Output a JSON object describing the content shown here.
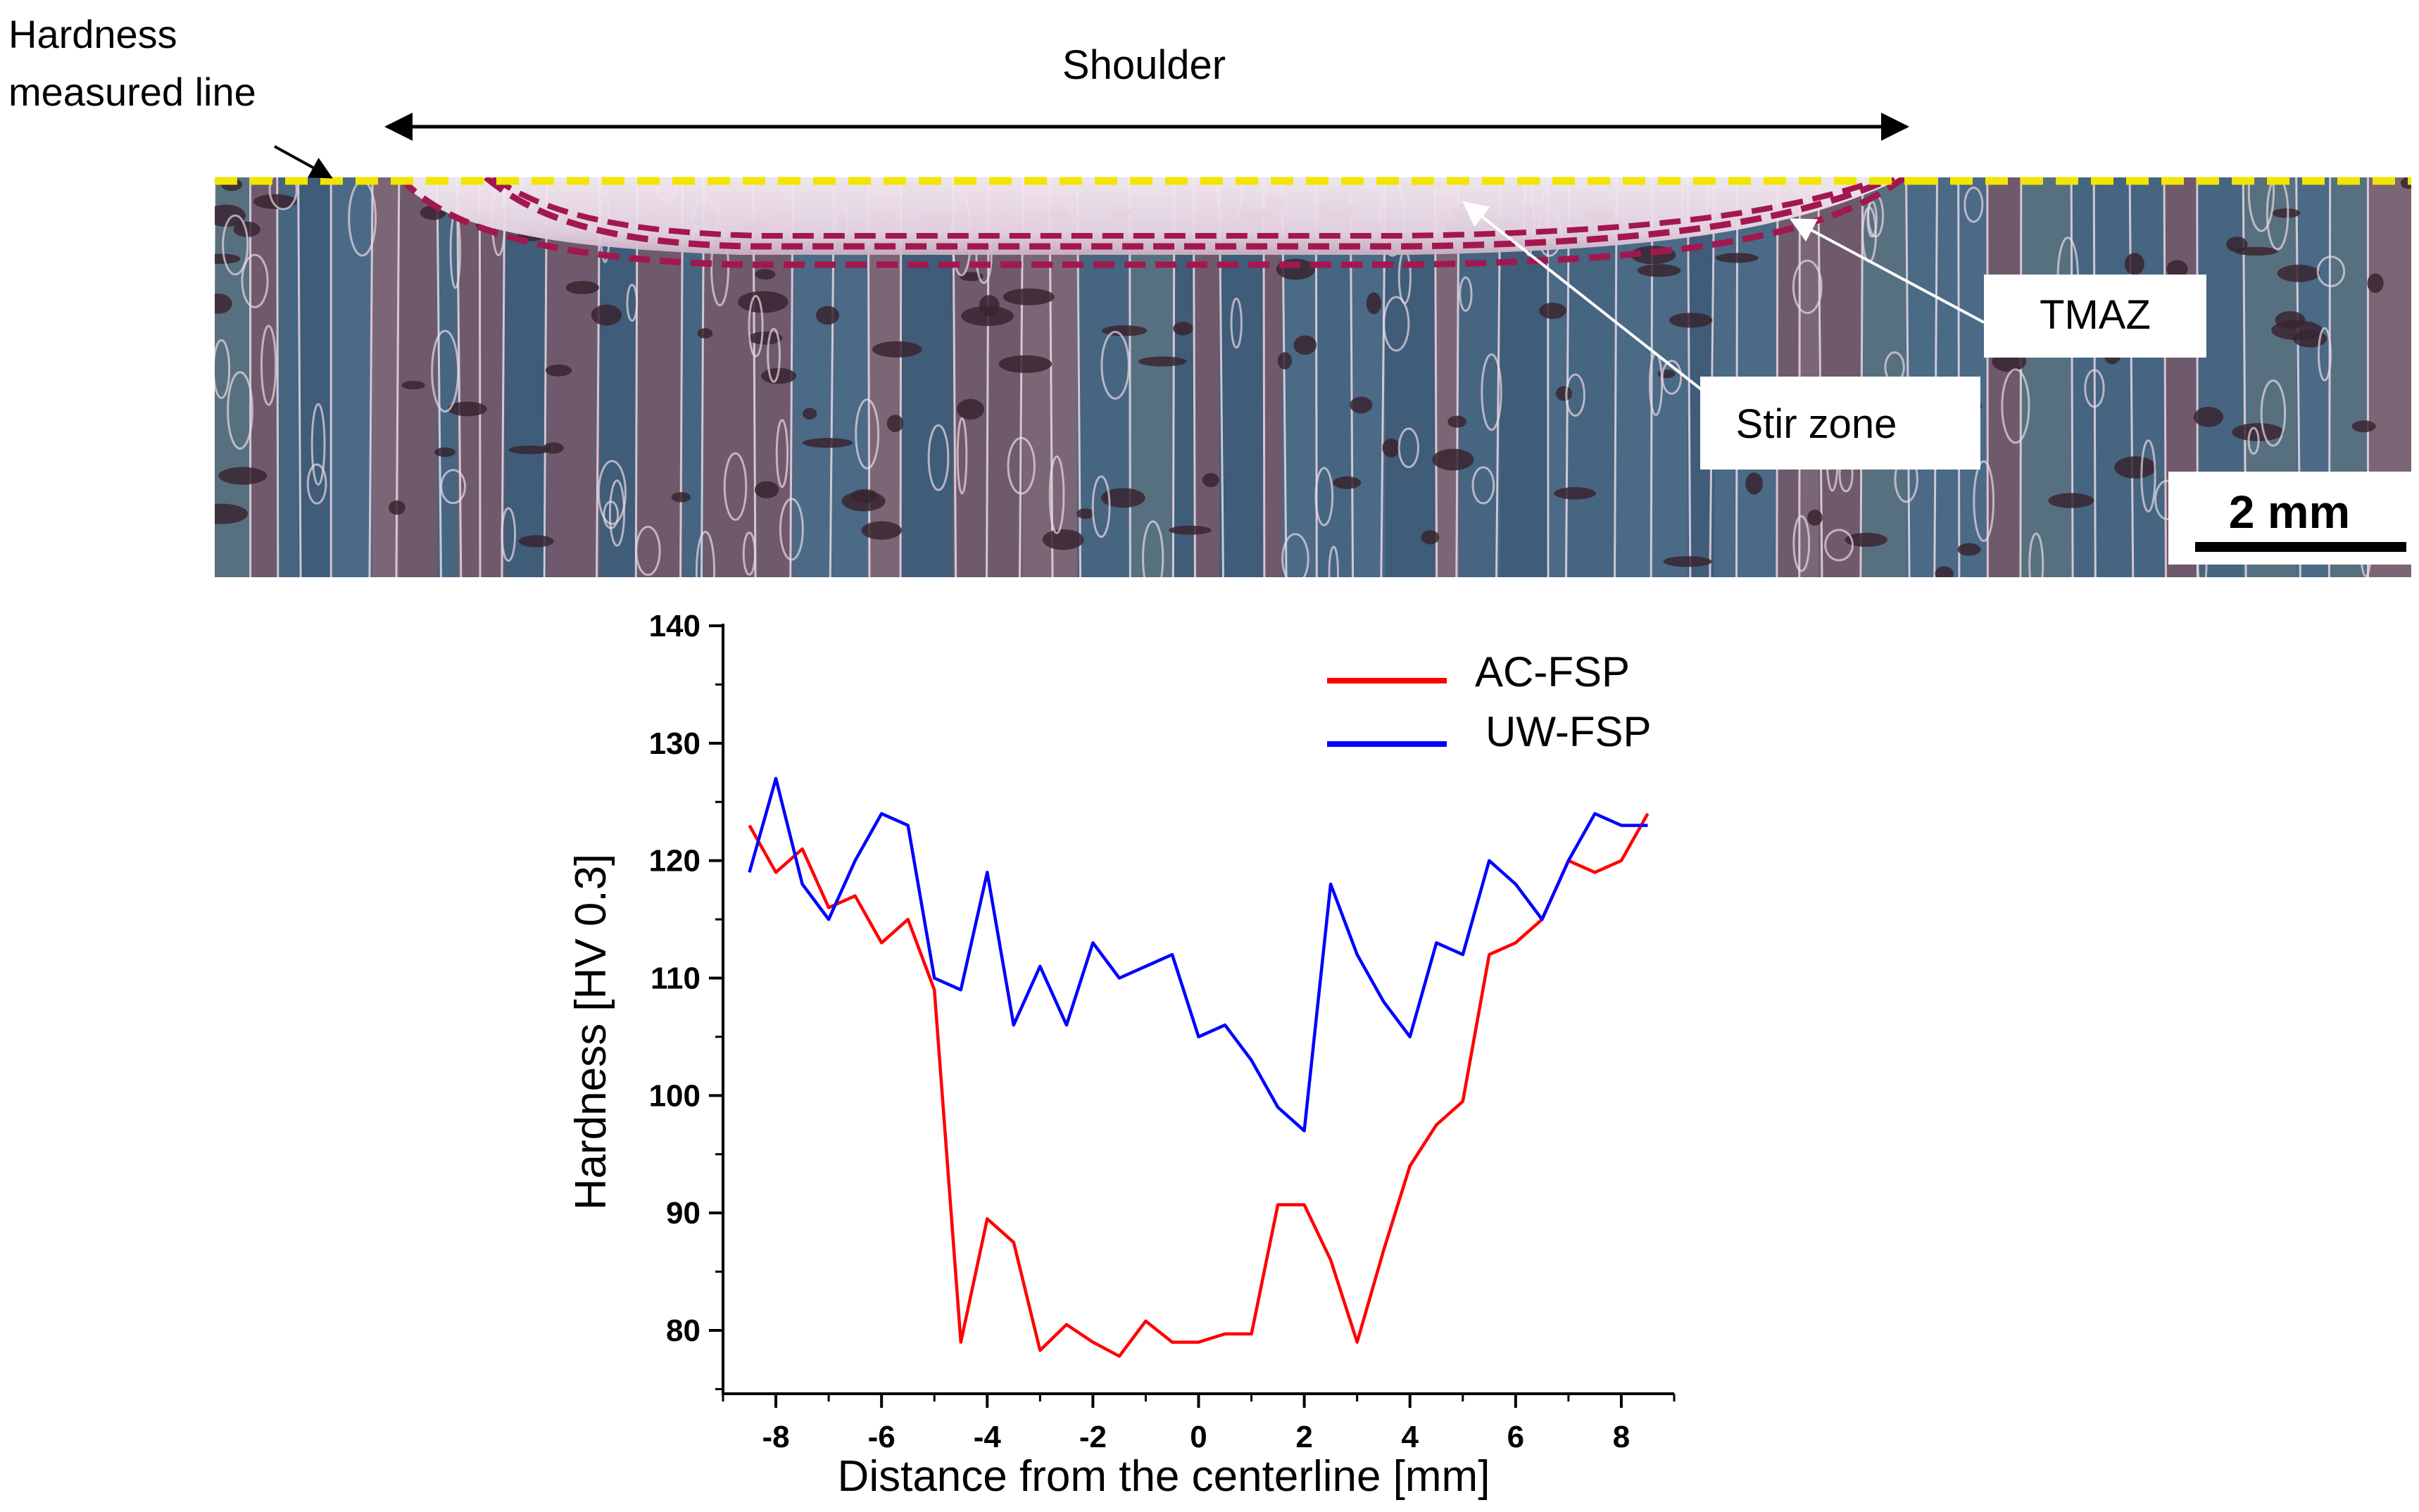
{
  "micrograph": {
    "labels": {
      "hardness_line": [
        "Hardness",
        "measured line"
      ],
      "shoulder": "Shoulder",
      "tmaz": "TMAZ",
      "stir_zone": "Stir zone",
      "scale_bar": "2 mm"
    },
    "colors": {
      "measured_line": "#f2e600",
      "zone_boundary": "#a3174f",
      "background": "#5d5a68",
      "grain_boundary": "#e9d8e4",
      "stir_zone": "#f1e2ee"
    }
  },
  "chart_data": {
    "type": "line",
    "title": "",
    "xlabel": "Distance from the centerline [mm]",
    "ylabel": "Hardness [HV 0.3]",
    "xlim": [
      -9,
      9
    ],
    "ylim": [
      78,
      140
    ],
    "x_ticks": [
      -8,
      -6,
      -4,
      -2,
      0,
      2,
      4,
      6,
      8
    ],
    "y_ticks": [
      80,
      90,
      100,
      110,
      120,
      130,
      140
    ],
    "grid": false,
    "legend_position": "top-right",
    "series": [
      {
        "name": "AC-FSP",
        "color": "#ff0000",
        "x": [
          -8.5,
          -8,
          -7.5,
          -7,
          -6.5,
          -6,
          -5.5,
          -5,
          -4.5,
          -4,
          -3.5,
          -3,
          -2.5,
          -2,
          -1.5,
          -1,
          -0.5,
          0,
          0.5,
          1,
          1.5,
          2,
          2.5,
          3,
          3.5,
          4,
          4.5,
          5,
          5.5,
          6,
          6.5,
          7,
          7.5,
          8,
          8.5
        ],
        "values": [
          123,
          119,
          121,
          116,
          117,
          113,
          115,
          109,
          79,
          89.5,
          87.5,
          78.3,
          80.5,
          79,
          77.8,
          80.8,
          79,
          79,
          79.7,
          79.7,
          90.7,
          90.7,
          86,
          79,
          86.8,
          94,
          97.5,
          99.5,
          112,
          113,
          115,
          120,
          119,
          120,
          124
        ]
      },
      {
        "name": "UW-FSP",
        "color": "#0000ff",
        "x": [
          -8.5,
          -8,
          -7.5,
          -7,
          -6.5,
          -6,
          -5.5,
          -5,
          -4.5,
          -4,
          -3.5,
          -3,
          -2.5,
          -2,
          -1.5,
          -1,
          -0.5,
          0,
          0.5,
          1,
          1.5,
          2,
          2.5,
          3,
          3.5,
          4,
          4.5,
          5,
          5.5,
          6,
          6.5,
          7,
          7.5,
          8,
          8.5
        ],
        "values": [
          119,
          127,
          118,
          115,
          120,
          124,
          123,
          110,
          109,
          119,
          106,
          111,
          106,
          113,
          110,
          111,
          112,
          105,
          106,
          103,
          99,
          97,
          118,
          112,
          108,
          105,
          113,
          112,
          120,
          118,
          115,
          120,
          124,
          123,
          123
        ]
      }
    ]
  }
}
